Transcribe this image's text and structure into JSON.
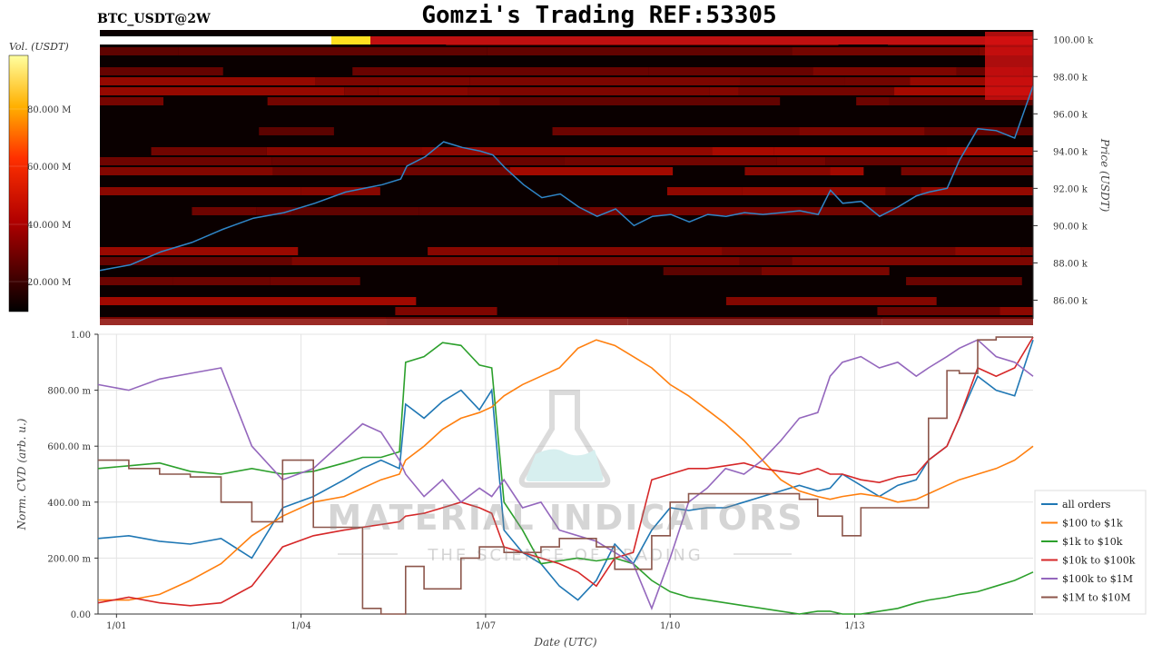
{
  "header": {
    "symbol": "BTC_USDT@2W",
    "title": "Gomzi's Trading REF:53305"
  },
  "heatmap_panel": {
    "colorbar_label": "Vol. (USDT)",
    "colorbar_ticks": [
      "20.000 M",
      "40.000 M",
      "60.000 M",
      "80.000 M"
    ],
    "y_axis_label": "Price (USDT)",
    "y_ticks": [
      "86.00 k",
      "88.00 k",
      "90.00 k",
      "92.00 k",
      "94.00 k",
      "96.00 k",
      "98.00 k",
      "100.00 k"
    ],
    "price_line_color": "#2f86c8"
  },
  "cvd_panel": {
    "y_axis_label": "Norm. CVD (arb. u.)",
    "x_axis_label": "Date (UTC)",
    "y_ticks": [
      "0.00",
      "200.00 m",
      "400.00 m",
      "600.00 m",
      "800.00 m",
      "1.00"
    ],
    "x_ticks": [
      "1/01",
      "1/04",
      "1/07",
      "1/10",
      "1/13"
    ]
  },
  "watermark": {
    "line1": "MATERIAL INDICATORS",
    "line2": "THE SCIENCE OF TRADING"
  },
  "chart_data": [
    {
      "type": "heatmap",
      "title": "BTC_USDT@2W",
      "ylabel": "Price (USDT)",
      "ylim": [
        85000,
        100500
      ],
      "colorbar": {
        "label": "Vol. (USDT)",
        "range": [
          0,
          90000000
        ]
      },
      "price_series": {
        "x_days": [
          0,
          0.5,
          1,
          1.5,
          2,
          2.5,
          3,
          3.5,
          4,
          4.3,
          4.6,
          4.9,
          5.0,
          5.3,
          5.6,
          5.9,
          6.2,
          6.4,
          6.6,
          6.9,
          7.2,
          7.5,
          7.8,
          8.1,
          8.4,
          8.7,
          9.0,
          9.3,
          9.6,
          9.9,
          10.2,
          10.5,
          10.8,
          11.1,
          11.4,
          11.7,
          11.9,
          12.1,
          12.4,
          12.7,
          13.0,
          13.3,
          13.5,
          13.8,
          14.0,
          14.3,
          14.6,
          14.9,
          15.2
        ],
        "price": [
          87600,
          87900,
          88600,
          89100,
          89800,
          90400,
          90700,
          91200,
          91800,
          92000,
          92200,
          92500,
          93200,
          93700,
          94500,
          94200,
          94000,
          93800,
          93100,
          92200,
          91500,
          91700,
          91000,
          90500,
          90900,
          90000,
          90500,
          90600,
          90200,
          90600,
          90500,
          90700,
          90600,
          90700,
          90800,
          90600,
          91900,
          91200,
          91300,
          90500,
          91000,
          91600,
          91800,
          92000,
          93500,
          95200,
          95100,
          94700,
          97500
        ]
      }
    },
    {
      "type": "line",
      "xlabel": "Date (UTC)",
      "ylabel": "Norm. CVD (arb. u.)",
      "ylim": [
        0,
        1
      ],
      "x_ticks": [
        "1/01",
        "1/04",
        "1/07",
        "1/10",
        "1/13"
      ],
      "legend_position": "bottom-right",
      "x_days": [
        0,
        0.5,
        1,
        1.5,
        2,
        2.5,
        3,
        3.5,
        4,
        4.3,
        4.6,
        4.9,
        5.0,
        5.3,
        5.6,
        5.9,
        6.2,
        6.4,
        6.6,
        6.9,
        7.2,
        7.5,
        7.8,
        8.1,
        8.4,
        8.7,
        9.0,
        9.3,
        9.6,
        9.9,
        10.2,
        10.5,
        10.8,
        11.1,
        11.4,
        11.7,
        11.9,
        12.1,
        12.4,
        12.7,
        13.0,
        13.3,
        13.5,
        13.8,
        14.0,
        14.3,
        14.6,
        14.9,
        15.2
      ],
      "series": [
        {
          "name": "all orders",
          "color": "#1f77b4",
          "values": [
            0.27,
            0.28,
            0.26,
            0.25,
            0.27,
            0.2,
            0.38,
            0.42,
            0.48,
            0.52,
            0.55,
            0.52,
            0.75,
            0.7,
            0.76,
            0.8,
            0.73,
            0.8,
            0.3,
            0.22,
            0.18,
            0.1,
            0.05,
            0.12,
            0.25,
            0.18,
            0.3,
            0.38,
            0.37,
            0.38,
            0.38,
            0.4,
            0.42,
            0.44,
            0.46,
            0.44,
            0.45,
            0.5,
            0.46,
            0.42,
            0.46,
            0.48,
            0.55,
            0.6,
            0.7,
            0.85,
            0.8,
            0.78,
            0.98
          ]
        },
        {
          "name": "$100 to $1k",
          "color": "#ff7f0e",
          "values": [
            0.05,
            0.05,
            0.07,
            0.12,
            0.18,
            0.28,
            0.35,
            0.4,
            0.42,
            0.45,
            0.48,
            0.5,
            0.55,
            0.6,
            0.66,
            0.7,
            0.72,
            0.74,
            0.78,
            0.82,
            0.85,
            0.88,
            0.95,
            0.98,
            0.96,
            0.92,
            0.88,
            0.82,
            0.78,
            0.73,
            0.68,
            0.62,
            0.55,
            0.48,
            0.44,
            0.42,
            0.41,
            0.42,
            0.43,
            0.42,
            0.4,
            0.41,
            0.43,
            0.46,
            0.48,
            0.5,
            0.52,
            0.55,
            0.6
          ]
        },
        {
          "name": "$1k to $10k",
          "color": "#2ca02c",
          "values": [
            0.52,
            0.53,
            0.54,
            0.51,
            0.5,
            0.52,
            0.5,
            0.51,
            0.54,
            0.56,
            0.56,
            0.58,
            0.9,
            0.92,
            0.97,
            0.96,
            0.89,
            0.88,
            0.4,
            0.3,
            0.18,
            0.19,
            0.2,
            0.19,
            0.2,
            0.18,
            0.12,
            0.08,
            0.06,
            0.05,
            0.04,
            0.03,
            0.02,
            0.01,
            0.0,
            0.01,
            0.01,
            0.0,
            0.0,
            0.01,
            0.02,
            0.04,
            0.05,
            0.06,
            0.07,
            0.08,
            0.1,
            0.12,
            0.15
          ]
        },
        {
          "name": "$10k to $100k",
          "color": "#d62728",
          "values": [
            0.04,
            0.06,
            0.04,
            0.03,
            0.04,
            0.1,
            0.24,
            0.28,
            0.3,
            0.31,
            0.32,
            0.33,
            0.35,
            0.36,
            0.38,
            0.4,
            0.38,
            0.36,
            0.24,
            0.22,
            0.2,
            0.18,
            0.15,
            0.1,
            0.2,
            0.22,
            0.48,
            0.5,
            0.52,
            0.52,
            0.53,
            0.54,
            0.52,
            0.51,
            0.5,
            0.52,
            0.5,
            0.5,
            0.48,
            0.47,
            0.49,
            0.5,
            0.55,
            0.6,
            0.7,
            0.88,
            0.85,
            0.88,
            0.99
          ]
        },
        {
          "name": "$100k to $1M",
          "color": "#9467bd",
          "values": [
            0.82,
            0.8,
            0.84,
            0.86,
            0.88,
            0.6,
            0.48,
            0.52,
            0.62,
            0.68,
            0.65,
            0.55,
            0.5,
            0.42,
            0.48,
            0.4,
            0.45,
            0.42,
            0.48,
            0.38,
            0.4,
            0.3,
            0.28,
            0.26,
            0.22,
            0.18,
            0.02,
            0.2,
            0.4,
            0.45,
            0.52,
            0.5,
            0.55,
            0.62,
            0.7,
            0.72,
            0.85,
            0.9,
            0.92,
            0.88,
            0.9,
            0.85,
            0.88,
            0.92,
            0.95,
            0.98,
            0.92,
            0.9,
            0.85
          ]
        },
        {
          "name": "$1M to $10M",
          "color": "#8c564b",
          "values": [
            0.55,
            0.52,
            0.5,
            0.49,
            0.4,
            0.33,
            0.55,
            0.31,
            0.31,
            0.02,
            0.0,
            0.0,
            0.17,
            0.09,
            0.09,
            0.2,
            0.24,
            0.24,
            0.22,
            0.22,
            0.24,
            0.27,
            0.27,
            0.24,
            0.16,
            0.16,
            0.28,
            0.4,
            0.43,
            0.43,
            0.43,
            0.43,
            0.43,
            0.43,
            0.41,
            0.35,
            0.35,
            0.28,
            0.38,
            0.38,
            0.38,
            0.38,
            0.7,
            0.87,
            0.86,
            0.98,
            0.99,
            0.99,
            0.99
          ]
        }
      ]
    }
  ]
}
